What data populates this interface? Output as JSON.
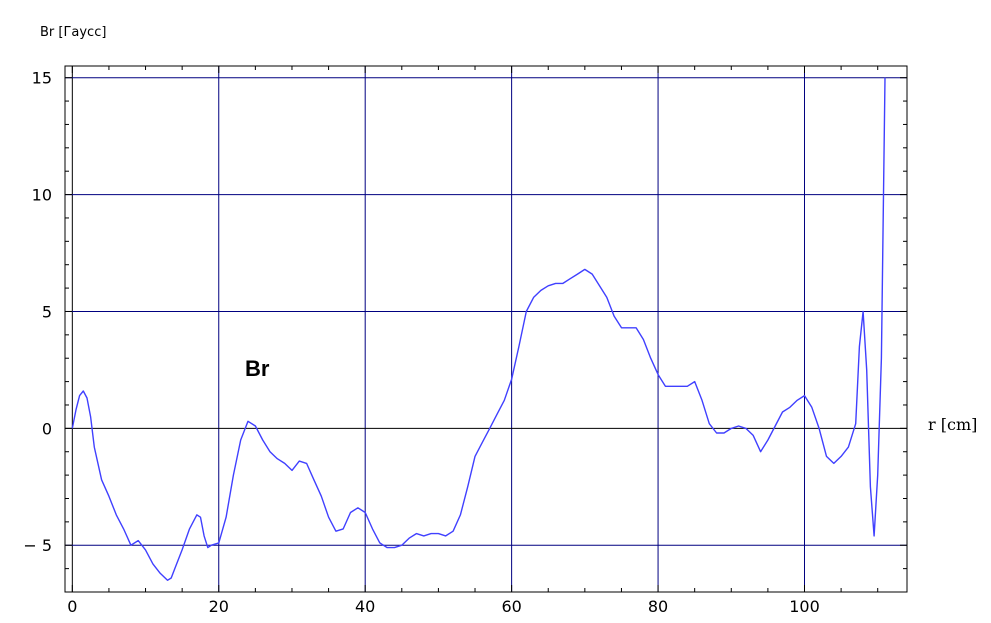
{
  "chart_data": {
    "type": "line",
    "ylabel": "Br [Гаусс]",
    "xlabel": "r [cm]",
    "annotation": "Br",
    "xlim": [
      -1,
      114
    ],
    "ylim": [
      -7,
      15.5
    ],
    "xticks": [
      0,
      20,
      40,
      60,
      80,
      100
    ],
    "xtick_labels": [
      "0",
      "20",
      "40",
      "60",
      "80",
      "100"
    ],
    "yticks": [
      -5,
      0,
      5,
      10,
      15
    ],
    "ytick_labels": [
      "-5",
      "0",
      "5",
      "10",
      "15"
    ],
    "grid": true,
    "colors": {
      "line": "#4040ff",
      "grid": "#000080",
      "axis": "#000000"
    },
    "series": [
      {
        "x": [
          0,
          0.5,
          1,
          1.5,
          2,
          2.5,
          3,
          4,
          5,
          6,
          7,
          8,
          9,
          10,
          11,
          12,
          13,
          13.5,
          14,
          15,
          16,
          17,
          17.5,
          18,
          18.5,
          19,
          20,
          21,
          22,
          23,
          24,
          25,
          26,
          27,
          28,
          29,
          30,
          31,
          32,
          33,
          34,
          35,
          36,
          37,
          38,
          39,
          40,
          41,
          42,
          43,
          44,
          45,
          46,
          47,
          48,
          49,
          50,
          51,
          52,
          53,
          54,
          55,
          56,
          57,
          58,
          59,
          60,
          61,
          62,
          63,
          64,
          65,
          66,
          67,
          68,
          69,
          70,
          71,
          72,
          73,
          74,
          75,
          76,
          77,
          78,
          79,
          80,
          81,
          82,
          83,
          84,
          85,
          86,
          87,
          88,
          89,
          90,
          91,
          92,
          93,
          94,
          95,
          96,
          97,
          98,
          99,
          100,
          101,
          102,
          103,
          104,
          105,
          106,
          107,
          107.5,
          108,
          108.5,
          109,
          109.5,
          110,
          110.5,
          111
        ],
        "y": [
          0,
          0.8,
          1.4,
          1.6,
          1.3,
          0.5,
          -0.8,
          -2.2,
          -2.9,
          -3.7,
          -4.3,
          -5,
          -4.8,
          -5.2,
          -5.8,
          -6.2,
          -6.5,
          -6.4,
          -6,
          -5.2,
          -4.3,
          -3.7,
          -3.8,
          -4.6,
          -5.1,
          -5,
          -4.9,
          -3.8,
          -2,
          -0.5,
          0.3,
          0.1,
          -0.5,
          -1,
          -1.3,
          -1.5,
          -1.8,
          -1.4,
          -1.5,
          -2.2,
          -2.9,
          -3.8,
          -4.4,
          -4.3,
          -3.6,
          -3.4,
          -3.6,
          -4.3,
          -4.9,
          -5.1,
          -5.1,
          -5,
          -4.7,
          -4.5,
          -4.6,
          -4.5,
          -4.5,
          -4.6,
          -4.4,
          -3.7,
          -2.5,
          -1.2,
          -0.6,
          0,
          0.6,
          1.2,
          2.1,
          3.5,
          5,
          5.6,
          5.9,
          6.1,
          6.2,
          6.2,
          6.4,
          6.6,
          6.8,
          6.6,
          6.1,
          5.6,
          4.8,
          4.3,
          4.3,
          4.3,
          3.8,
          3,
          2.3,
          1.8,
          1.8,
          1.8,
          1.8,
          2,
          1.2,
          0.2,
          -0.2,
          -0.2,
          0,
          0.1,
          0,
          -0.3,
          -1,
          -0.5,
          0.1,
          0.7,
          0.9,
          1.2,
          1.4,
          0.9,
          0,
          -1.2,
          -1.5,
          -1.2,
          -0.8,
          0.2,
          3.5,
          5,
          2.5,
          -2.5,
          -4.6,
          -2,
          3,
          15
        ]
      }
    ]
  }
}
